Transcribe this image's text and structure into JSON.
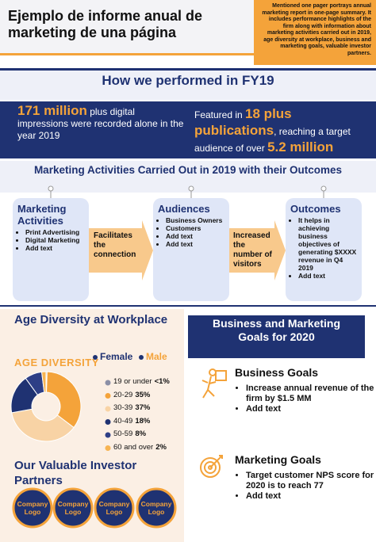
{
  "header": {
    "title": "Ejemplo de informe anual de marketing de una página",
    "summary": "Mentioned one pager portrays annual marketing report in one-page summary. It includes performance highlights of the firm along with information about marketing activities carried out in 2019, age diversity at workplace, business and marketing goals, valuable investor partners."
  },
  "performance": {
    "heading": "How we performed in FY19",
    "impressions": {
      "highlight": "171 million",
      "text": "plus digital impressions were recorded alone in the year 2019"
    },
    "publications": {
      "prefix": "Featured in",
      "highlight": "18 plus publications",
      "middle": ", reaching a target audience of over",
      "audience": "5.2 million"
    }
  },
  "activities": {
    "heading": "Marketing Activities Carried Out in 2019 with their Outcomes",
    "boxes": [
      {
        "title": "Marketing Activities",
        "items": [
          "Print Advertising",
          "Digital Marketing",
          "Add text"
        ]
      },
      {
        "title": "Audiences",
        "items": [
          "Business Owners",
          "Customers",
          "Add text",
          "Add text"
        ]
      },
      {
        "title": "Outcomes",
        "items": [
          "It helps in achieving business objectives of generating $XXXX revenue in Q4 2019",
          "Add text"
        ]
      }
    ],
    "arrows": [
      "Facilitates the connection",
      "Increased the number of visitors"
    ]
  },
  "chart_data": {
    "type": "pie",
    "title": "Age Diversity at Workplace",
    "legend": [
      "Female",
      "Male"
    ],
    "label": "AGE DIVERSITY",
    "categories": [
      "19 or under",
      "20-29",
      "30-39",
      "40-49",
      "50-59",
      "60 and over"
    ],
    "values": [
      0.5,
      35,
      37,
      18,
      8,
      2
    ],
    "value_labels": [
      "<1%",
      "35%",
      "37%",
      "18%",
      "8%",
      "2%"
    ],
    "colors": [
      "#8b8fa6",
      "#f4a33a",
      "#f8d3a5",
      "#1f3272",
      "#2e3f86",
      "#f7b452"
    ]
  },
  "goals": {
    "heading": "Business and Marketing Goals for 2020",
    "sections": [
      {
        "title": "Business Goals",
        "items": [
          "Increase annual revenue of the firm by $1.5 MM",
          "Add text"
        ]
      },
      {
        "title": "Marketing Goals",
        "items": [
          "Target customer NPS score for 2020 is to reach 77",
          "Add text"
        ]
      }
    ]
  },
  "investors": {
    "heading": "Our Valuable Investor Partners",
    "logos": [
      "Company Logo",
      "Company Logo",
      "Company Logo",
      "Company Logo"
    ]
  }
}
